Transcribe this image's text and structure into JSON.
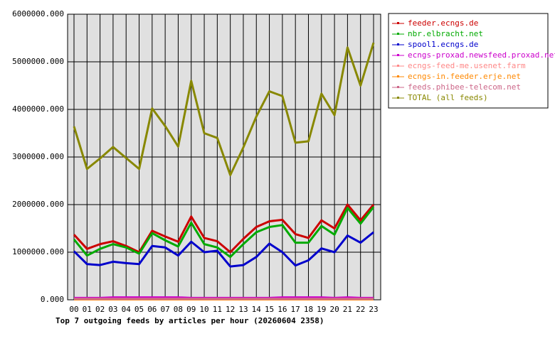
{
  "chart_data": {
    "type": "line",
    "title": "Top 7 outgoing feeds by articles per hour (20260604 2358)",
    "categories": [
      "00",
      "01",
      "02",
      "03",
      "04",
      "05",
      "06",
      "07",
      "08",
      "09",
      "10",
      "11",
      "12",
      "13",
      "14",
      "15",
      "16",
      "17",
      "18",
      "19",
      "20",
      "21",
      "22",
      "23"
    ],
    "ylim": [
      0,
      6000000
    ],
    "yticks": [
      {
        "value": 0,
        "label": "0.000"
      },
      {
        "value": 1000000,
        "label": "1000000.000"
      },
      {
        "value": 2000000,
        "label": "2000000.000"
      },
      {
        "value": 3000000,
        "label": "3000000.000"
      },
      {
        "value": 4000000,
        "label": "4000000.000"
      },
      {
        "value": 5000000,
        "label": "5000000.000"
      },
      {
        "value": 6000000,
        "label": "6000000.000"
      }
    ],
    "grid": true,
    "legend": "right",
    "series": [
      {
        "name": "feeder.ecngs.de",
        "color": "#cc0000",
        "values": [
          1370000,
          1070000,
          1170000,
          1230000,
          1130000,
          1000000,
          1450000,
          1330000,
          1220000,
          1750000,
          1300000,
          1230000,
          1000000,
          1280000,
          1530000,
          1650000,
          1680000,
          1380000,
          1300000,
          1670000,
          1500000,
          2000000,
          1670000,
          2000000
        ]
      },
      {
        "name": "nbr.elbracht.net",
        "color": "#00aa00",
        "values": [
          1270000,
          930000,
          1070000,
          1170000,
          1100000,
          970000,
          1400000,
          1250000,
          1120000,
          1620000,
          1170000,
          1100000,
          900000,
          1170000,
          1420000,
          1530000,
          1570000,
          1200000,
          1200000,
          1550000,
          1370000,
          1930000,
          1600000,
          1950000
        ]
      },
      {
        "name": "spool1.ecngs.de",
        "color": "#0000cc",
        "values": [
          1020000,
          750000,
          730000,
          800000,
          770000,
          750000,
          1130000,
          1100000,
          930000,
          1220000,
          1000000,
          1030000,
          700000,
          730000,
          900000,
          1180000,
          1000000,
          720000,
          830000,
          1080000,
          1000000,
          1350000,
          1200000,
          1420000
        ]
      },
      {
        "name": "ecngs-proxad.newsfeed.proxad.net",
        "color": "#cc00cc",
        "values": [
          40000,
          40000,
          40000,
          50000,
          50000,
          50000,
          50000,
          50000,
          50000,
          40000,
          40000,
          40000,
          40000,
          40000,
          40000,
          40000,
          50000,
          50000,
          50000,
          50000,
          40000,
          50000,
          40000,
          40000
        ]
      },
      {
        "name": "ecngs-feed-me.usenet.farm",
        "color": "#ff8888",
        "values": [
          20000,
          20000,
          20000,
          20000,
          20000,
          20000,
          20000,
          20000,
          20000,
          20000,
          20000,
          20000,
          20000,
          20000,
          20000,
          20000,
          20000,
          20000,
          20000,
          20000,
          20000,
          20000,
          20000,
          20000
        ]
      },
      {
        "name": "ecngs-in.feeder.erje.net",
        "color": "#ff8800",
        "values": [
          10000,
          10000,
          10000,
          10000,
          10000,
          10000,
          10000,
          10000,
          10000,
          10000,
          10000,
          10000,
          10000,
          10000,
          10000,
          10000,
          10000,
          10000,
          10000,
          10000,
          10000,
          10000,
          10000,
          10000
        ]
      },
      {
        "name": "feeds.phibee-telecom.net",
        "color": "#cc6688",
        "values": [
          20000,
          20000,
          20000,
          20000,
          20000,
          20000,
          20000,
          20000,
          20000,
          20000,
          20000,
          20000,
          20000,
          20000,
          20000,
          20000,
          20000,
          20000,
          20000,
          20000,
          20000,
          20000,
          20000,
          20000
        ]
      },
      {
        "name": "TOTAL (all feeds)",
        "color": "#888800",
        "values": [
          3640000,
          2750000,
          2970000,
          3210000,
          2980000,
          2750000,
          4020000,
          3650000,
          3220000,
          4600000,
          3500000,
          3400000,
          2620000,
          3200000,
          3850000,
          4380000,
          4280000,
          3300000,
          3330000,
          4330000,
          3880000,
          5300000,
          4500000,
          5400000
        ]
      }
    ]
  }
}
